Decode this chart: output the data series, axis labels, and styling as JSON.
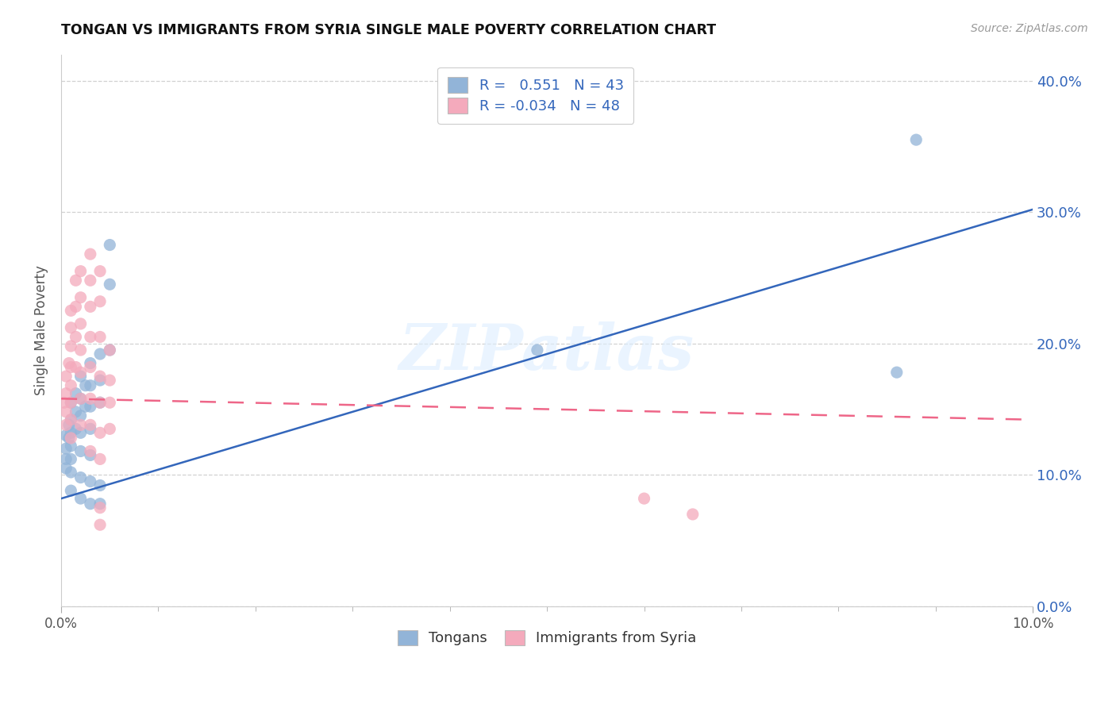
{
  "title": "TONGAN VS IMMIGRANTS FROM SYRIA SINGLE MALE POVERTY CORRELATION CHART",
  "source": "Source: ZipAtlas.com",
  "ylabel": "Single Male Poverty",
  "legend_label1": "Tongans",
  "legend_label2": "Immigrants from Syria",
  "r1": 0.551,
  "n1": 43,
  "r2": -0.034,
  "n2": 48,
  "color_blue": "#92B4D8",
  "color_pink": "#F4AABC",
  "color_blue_line": "#3366BB",
  "color_pink_line": "#EE6688",
  "watermark": "ZIPatlas",
  "xlim": [
    0.0,
    0.1
  ],
  "ylim": [
    0.0,
    0.42
  ],
  "xtick_major": [
    0.0,
    0.05,
    0.1
  ],
  "xtick_minor": [
    0.01,
    0.02,
    0.03,
    0.04,
    0.06,
    0.07,
    0.08,
    0.09
  ],
  "yticks": [
    0.0,
    0.1,
    0.2,
    0.3,
    0.4
  ],
  "blue_scatter": [
    [
      0.0005,
      0.13
    ],
    [
      0.0005,
      0.12
    ],
    [
      0.0005,
      0.112
    ],
    [
      0.0005,
      0.105
    ],
    [
      0.0008,
      0.138
    ],
    [
      0.0008,
      0.128
    ],
    [
      0.001,
      0.155
    ],
    [
      0.001,
      0.142
    ],
    [
      0.001,
      0.132
    ],
    [
      0.001,
      0.122
    ],
    [
      0.001,
      0.112
    ],
    [
      0.001,
      0.102
    ],
    [
      0.001,
      0.088
    ],
    [
      0.0015,
      0.162
    ],
    [
      0.0015,
      0.148
    ],
    [
      0.0015,
      0.135
    ],
    [
      0.002,
      0.175
    ],
    [
      0.002,
      0.158
    ],
    [
      0.002,
      0.145
    ],
    [
      0.002,
      0.132
    ],
    [
      0.002,
      0.118
    ],
    [
      0.002,
      0.098
    ],
    [
      0.002,
      0.082
    ],
    [
      0.0025,
      0.168
    ],
    [
      0.0025,
      0.152
    ],
    [
      0.003,
      0.185
    ],
    [
      0.003,
      0.168
    ],
    [
      0.003,
      0.152
    ],
    [
      0.003,
      0.135
    ],
    [
      0.003,
      0.115
    ],
    [
      0.003,
      0.095
    ],
    [
      0.003,
      0.078
    ],
    [
      0.004,
      0.192
    ],
    [
      0.004,
      0.172
    ],
    [
      0.004,
      0.155
    ],
    [
      0.004,
      0.092
    ],
    [
      0.004,
      0.078
    ],
    [
      0.005,
      0.275
    ],
    [
      0.005,
      0.245
    ],
    [
      0.005,
      0.195
    ],
    [
      0.049,
      0.195
    ],
    [
      0.086,
      0.178
    ],
    [
      0.088,
      0.355
    ]
  ],
  "pink_scatter": [
    [
      0.0003,
      0.155
    ],
    [
      0.0005,
      0.175
    ],
    [
      0.0005,
      0.162
    ],
    [
      0.0005,
      0.148
    ],
    [
      0.0005,
      0.138
    ],
    [
      0.0008,
      0.185
    ],
    [
      0.001,
      0.225
    ],
    [
      0.001,
      0.212
    ],
    [
      0.001,
      0.198
    ],
    [
      0.001,
      0.182
    ],
    [
      0.001,
      0.168
    ],
    [
      0.001,
      0.155
    ],
    [
      0.001,
      0.142
    ],
    [
      0.001,
      0.128
    ],
    [
      0.0015,
      0.248
    ],
    [
      0.0015,
      0.228
    ],
    [
      0.0015,
      0.205
    ],
    [
      0.0015,
      0.182
    ],
    [
      0.002,
      0.255
    ],
    [
      0.002,
      0.235
    ],
    [
      0.002,
      0.215
    ],
    [
      0.002,
      0.195
    ],
    [
      0.002,
      0.178
    ],
    [
      0.002,
      0.158
    ],
    [
      0.002,
      0.138
    ],
    [
      0.003,
      0.268
    ],
    [
      0.003,
      0.248
    ],
    [
      0.003,
      0.228
    ],
    [
      0.003,
      0.205
    ],
    [
      0.003,
      0.182
    ],
    [
      0.003,
      0.158
    ],
    [
      0.003,
      0.138
    ],
    [
      0.003,
      0.118
    ],
    [
      0.004,
      0.255
    ],
    [
      0.004,
      0.232
    ],
    [
      0.004,
      0.205
    ],
    [
      0.004,
      0.175
    ],
    [
      0.004,
      0.155
    ],
    [
      0.004,
      0.132
    ],
    [
      0.004,
      0.112
    ],
    [
      0.004,
      0.075
    ],
    [
      0.004,
      0.062
    ],
    [
      0.005,
      0.195
    ],
    [
      0.005,
      0.172
    ],
    [
      0.005,
      0.155
    ],
    [
      0.005,
      0.135
    ],
    [
      0.06,
      0.082
    ],
    [
      0.065,
      0.07
    ]
  ],
  "blue_line_x": [
    0.0,
    0.1
  ],
  "blue_line_y": [
    0.082,
    0.302
  ],
  "pink_line_x": [
    0.0,
    0.1
  ],
  "pink_line_y": [
    0.158,
    0.142
  ]
}
